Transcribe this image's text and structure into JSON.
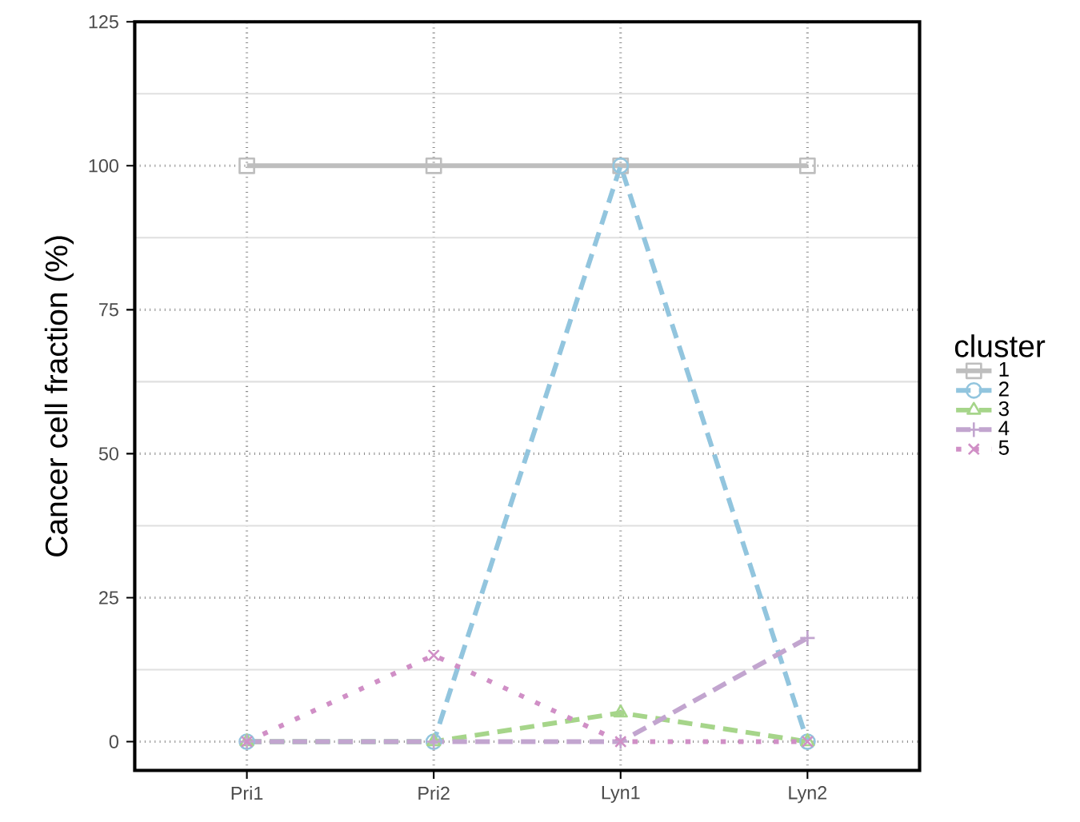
{
  "chart_data": {
    "type": "line",
    "ylabel": "Cancer cell fraction (%)",
    "legend_title": "cluster",
    "categories": [
      "Pri1",
      "Pri2",
      "Lyn1",
      "Lyn2"
    ],
    "series": [
      {
        "name": "1",
        "color": "#bebebe",
        "marker": "square",
        "line_style": "solid",
        "values": [
          100,
          100,
          100,
          100
        ]
      },
      {
        "name": "2",
        "color": "#92c5de",
        "marker": "circle",
        "line_style": "dashed",
        "values": [
          0,
          0,
          100,
          0
        ]
      },
      {
        "name": "3",
        "color": "#a6d58a",
        "marker": "triangle",
        "line_style": "dashed",
        "values": [
          0,
          0,
          5,
          0
        ]
      },
      {
        "name": "4",
        "color": "#c2a5cf",
        "marker": "plus",
        "line_style": "dashed",
        "values": [
          0,
          0,
          0,
          18
        ]
      },
      {
        "name": "5",
        "color": "#d08fc6",
        "marker": "cross",
        "line_style": "dotted",
        "values": [
          0,
          15,
          0,
          0
        ]
      }
    ],
    "ylim": [
      -5,
      125
    ],
    "yticks": [
      0,
      25,
      50,
      75,
      100,
      125
    ],
    "grid": true,
    "legend": "right"
  }
}
